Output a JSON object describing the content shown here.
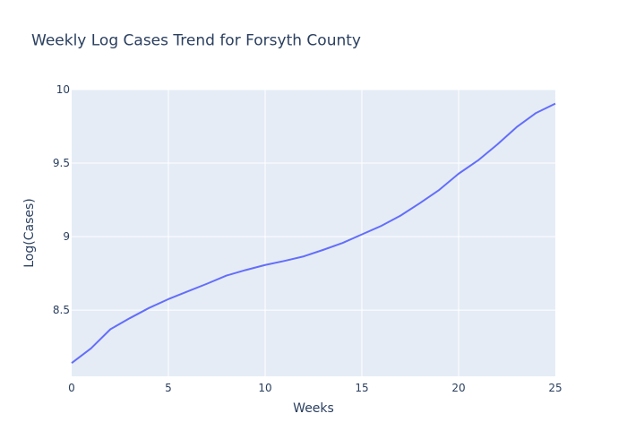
{
  "chart_data": {
    "type": "line",
    "title": "Weekly Log Cases Trend for Forsyth County",
    "xlabel": "Weeks",
    "ylabel": "Log(Cases)",
    "xlim": [
      0,
      25
    ],
    "ylim": [
      8.05,
      10
    ],
    "xticks": [
      0,
      5,
      10,
      15,
      20,
      25
    ],
    "xtick_labels": [
      "0",
      "5",
      "10",
      "15",
      "20",
      "25"
    ],
    "yticks": [
      8.5,
      9,
      9.5,
      10
    ],
    "ytick_labels": [
      "8.5",
      "9",
      "9.5",
      "10"
    ],
    "grid": true,
    "legend": false,
    "colors": {
      "line": "#636efa",
      "plot_bg": "#e5ecf6",
      "grid": "#ffffff",
      "text": "#2a3f5f"
    },
    "series": [
      {
        "name": "Log(Cases)",
        "x": [
          0,
          1,
          2,
          3,
          4,
          5,
          6,
          7,
          8,
          9,
          10,
          11,
          12,
          13,
          14,
          15,
          16,
          17,
          18,
          19,
          20,
          21,
          22,
          23,
          24,
          25
        ],
        "y": [
          8.14,
          8.24,
          8.37,
          8.445,
          8.515,
          8.575,
          8.628,
          8.68,
          8.735,
          8.773,
          8.807,
          8.835,
          8.866,
          8.91,
          8.957,
          9.015,
          9.073,
          9.143,
          9.228,
          9.318,
          9.428,
          9.518,
          9.627,
          9.745,
          9.841,
          9.905
        ]
      }
    ]
  }
}
